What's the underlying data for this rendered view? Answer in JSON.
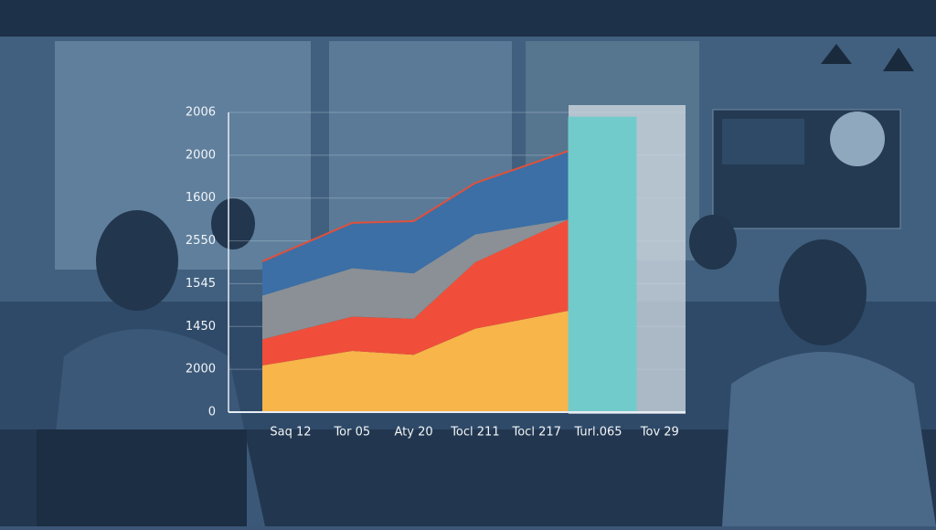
{
  "chart_data": {
    "type": "area",
    "categories": [
      "Saq 12",
      "Tor 05",
      "Aty 20",
      "Tocl 211",
      "Tocl 217",
      "Turl.065",
      "Tov 29"
    ],
    "ylim": [
      0,
      7
    ],
    "yticks": [
      {
        "value": 0,
        "label": "0"
      },
      {
        "value": 1,
        "label": "2000"
      },
      {
        "value": 2,
        "label": "1450"
      },
      {
        "value": 3,
        "label": "1545"
      },
      {
        "value": 4,
        "label": "2550"
      },
      {
        "value": 5,
        "label": "1600"
      },
      {
        "value": 6,
        "label": "2000"
      },
      {
        "value": 7,
        "label": "2006"
      }
    ],
    "grid": true,
    "series": [
      {
        "color": "#f8b54a",
        "values": [
          1.09,
          1.43,
          1.34,
          1.95,
          2.37,
          null,
          null
        ]
      },
      {
        "color": "#f04e3a",
        "values": [
          0.61,
          0.8,
          0.84,
          1.55,
          2.13,
          null,
          null
        ]
      },
      {
        "color": "#8a9096",
        "values": [
          1.02,
          1.13,
          1.06,
          0.65,
          0,
          null,
          null
        ]
      },
      {
        "color": "#3b6fa6",
        "top_line_color": "#e0503c",
        "values": [
          0.8,
          1.06,
          1.22,
          1.2,
          1.6,
          null,
          null
        ]
      },
      {
        "type": "bar",
        "color": "#72cbcb",
        "values": [
          null,
          null,
          null,
          null,
          null,
          6.9,
          null
        ]
      }
    ]
  }
}
